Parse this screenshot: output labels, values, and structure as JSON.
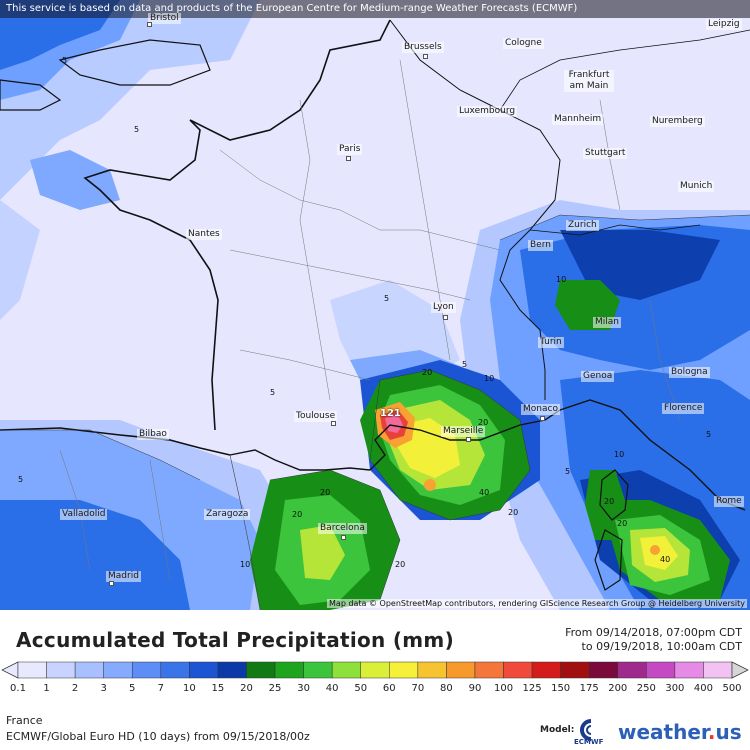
{
  "map": {
    "banner": "This service is based on data and products of the European Centre for Medium-range Weather Forecasts (ECMWF)",
    "attribution": "Map data © OpenStreetMap contributors, rendering GIScience Research Group @ Heidelberg University",
    "colors": {
      "background": "#e6e6ff",
      "light_blue": "#b4c8ff",
      "mid_blue": "#6fa0ff",
      "blue": "#2a6ee8",
      "dark_blue": "#0d3fae",
      "green_dark": "#178f17",
      "green": "#3cc43c",
      "yellow_green": "#b6e53a",
      "yellow": "#f3f03a",
      "orange": "#f7a232",
      "red": "#e8413a",
      "pink": "#f26a9a"
    },
    "cities": [
      {
        "name": "Bristol"
      },
      {
        "name": "Brussels"
      },
      {
        "name": "Cologne"
      },
      {
        "name": "Leipzig"
      },
      {
        "name": "Frankfurt am Main"
      },
      {
        "name": "Luxembourg"
      },
      {
        "name": "Mannheim"
      },
      {
        "name": "Nuremberg"
      },
      {
        "name": "Paris"
      },
      {
        "name": "Stuttgart"
      },
      {
        "name": "Munich"
      },
      {
        "name": "Zurich"
      },
      {
        "name": "Bern"
      },
      {
        "name": "Nantes"
      },
      {
        "name": "Lyon"
      },
      {
        "name": "Milan"
      },
      {
        "name": "Turin"
      },
      {
        "name": "Genoa"
      },
      {
        "name": "Bologna"
      },
      {
        "name": "Florence"
      },
      {
        "name": "Monaco"
      },
      {
        "name": "Marseille"
      },
      {
        "name": "Toulouse"
      },
      {
        "name": "Bilbao"
      },
      {
        "name": "Valladolid"
      },
      {
        "name": "Zaragoza"
      },
      {
        "name": "Barcelona"
      },
      {
        "name": "Madrid"
      },
      {
        "name": "Rome"
      }
    ],
    "contour_labels": [
      "5",
      "5",
      "5",
      "5",
      "5",
      "5",
      "5",
      "5",
      "10",
      "10",
      "10",
      "10",
      "20",
      "20",
      "20",
      "20",
      "20",
      "20",
      "20",
      "20",
      "40",
      "40",
      "121"
    ]
  },
  "legend": {
    "title": "Accumulated Total Precipitation (mm)",
    "from": "From 09/14/2018, 07:00pm CDT",
    "to": "to 09/19/2018, 10:00am CDT",
    "ticks": [
      "0.1",
      "1",
      "2",
      "3",
      "5",
      "7",
      "10",
      "15",
      "20",
      "25",
      "30",
      "40",
      "50",
      "60",
      "70",
      "80",
      "90",
      "100",
      "125",
      "150",
      "175",
      "200",
      "250",
      "300",
      "400",
      "500"
    ],
    "colors": [
      "#e8e8ff",
      "#c8d4ff",
      "#a8c0ff",
      "#86aafe",
      "#5d8ef5",
      "#3b74e8",
      "#1c55d4",
      "#0b3aa8",
      "#127a14",
      "#1ea51e",
      "#3cc43c",
      "#8ee03a",
      "#d9ef38",
      "#f7f03a",
      "#f7c431",
      "#f79a2d",
      "#f5763a",
      "#ef4a3a",
      "#d41c1c",
      "#a10f10",
      "#7a0a3a",
      "#9e2a8e",
      "#c44ac4",
      "#e58ae5",
      "#f2c2f2",
      "#d6d6d6"
    ],
    "region": "France",
    "model": "ECMWF/Global Euro HD (10 days) from 09/15/2018/00z",
    "model_label": "Model:",
    "ecmwf_text": "ECMWF",
    "weather_text": "weather",
    "weather_dot": ".",
    "weather_suffix": "us"
  }
}
